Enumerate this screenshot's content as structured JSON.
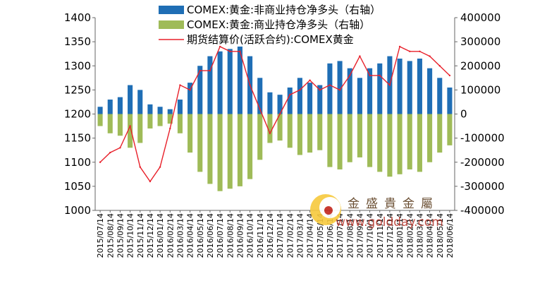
{
  "chart_data": {
    "type": "bar+line",
    "dual_axis": true,
    "y_left": {
      "min": 1000,
      "max": 1400,
      "ticks": [
        1000,
        1050,
        1100,
        1150,
        1200,
        1250,
        1300,
        1350,
        1400
      ]
    },
    "y_right": {
      "min": -400000,
      "max": 400000,
      "ticks": [
        -400000,
        -300000,
        -200000,
        -100000,
        0,
        100000,
        200000,
        300000,
        400000
      ]
    },
    "x_ticks": [
      "2015/07/14",
      "2015/08/14",
      "2015/09/14",
      "2015/10/14",
      "2015/11/14",
      "2015/12/14",
      "2016/01/14",
      "2016/02/14",
      "2016/03/14",
      "2016/04/14",
      "2016/05/14",
      "2016/06/14",
      "2016/07/14",
      "2016/08/14",
      "2016/09/14",
      "2016/10/14",
      "2016/11/14",
      "2016/12/14",
      "2017/01/14",
      "2017/02/14",
      "2017/03/14",
      "2017/04/14",
      "2017/05/14",
      "2017/06/14",
      "2017/07/14",
      "2017/08/14",
      "2017/09/14",
      "2017/10/14",
      "2017/11/14",
      "2017/12/14",
      "2018/01/14",
      "2018/02/14",
      "2018/03/14",
      "2018/04/14",
      "2018/05/14",
      "2018/06/14"
    ],
    "series": [
      {
        "name": "COMEX:黄金:非商业持仓净多头（右轴）",
        "type": "bar",
        "axis": "right",
        "color": "#1f6eb5",
        "values": [
          30000,
          60000,
          70000,
          120000,
          100000,
          40000,
          30000,
          20000,
          60000,
          130000,
          200000,
          240000,
          260000,
          270000,
          280000,
          240000,
          150000,
          90000,
          80000,
          110000,
          150000,
          130000,
          120000,
          210000,
          220000,
          190000,
          150000,
          190000,
          210000,
          240000,
          230000,
          220000,
          230000,
          190000,
          150000,
          110000
        ]
      },
      {
        "name": "COMEX:黄金:商业持仓净多头（右轴）",
        "type": "bar",
        "axis": "right",
        "color": "#9fbb58",
        "values": [
          -50000,
          -80000,
          -90000,
          -140000,
          -120000,
          -60000,
          -50000,
          -40000,
          -80000,
          -160000,
          -240000,
          -290000,
          -320000,
          -310000,
          -300000,
          -270000,
          -190000,
          -120000,
          -110000,
          -140000,
          -170000,
          -160000,
          -150000,
          -220000,
          -230000,
          -200000,
          -180000,
          -220000,
          -240000,
          -260000,
          -250000,
          -230000,
          -240000,
          -200000,
          -160000,
          -130000
        ]
      },
      {
        "name": "期货结算价(活跃合约):COMEX黄金",
        "type": "line",
        "axis": "left",
        "color": "#e8202a",
        "values": [
          1100,
          1120,
          1130,
          1175,
          1090,
          1060,
          1090,
          1170,
          1260,
          1250,
          1290,
          1290,
          1340,
          1330,
          1330,
          1260,
          1210,
          1160,
          1200,
          1240,
          1250,
          1270,
          1250,
          1260,
          1250,
          1280,
          1320,
          1280,
          1280,
          1260,
          1340,
          1330,
          1330,
          1320,
          1300,
          1280
        ]
      }
    ]
  },
  "watermark": {
    "name_cn": "金盛貴金屬",
    "url": "www.goldday.com"
  }
}
